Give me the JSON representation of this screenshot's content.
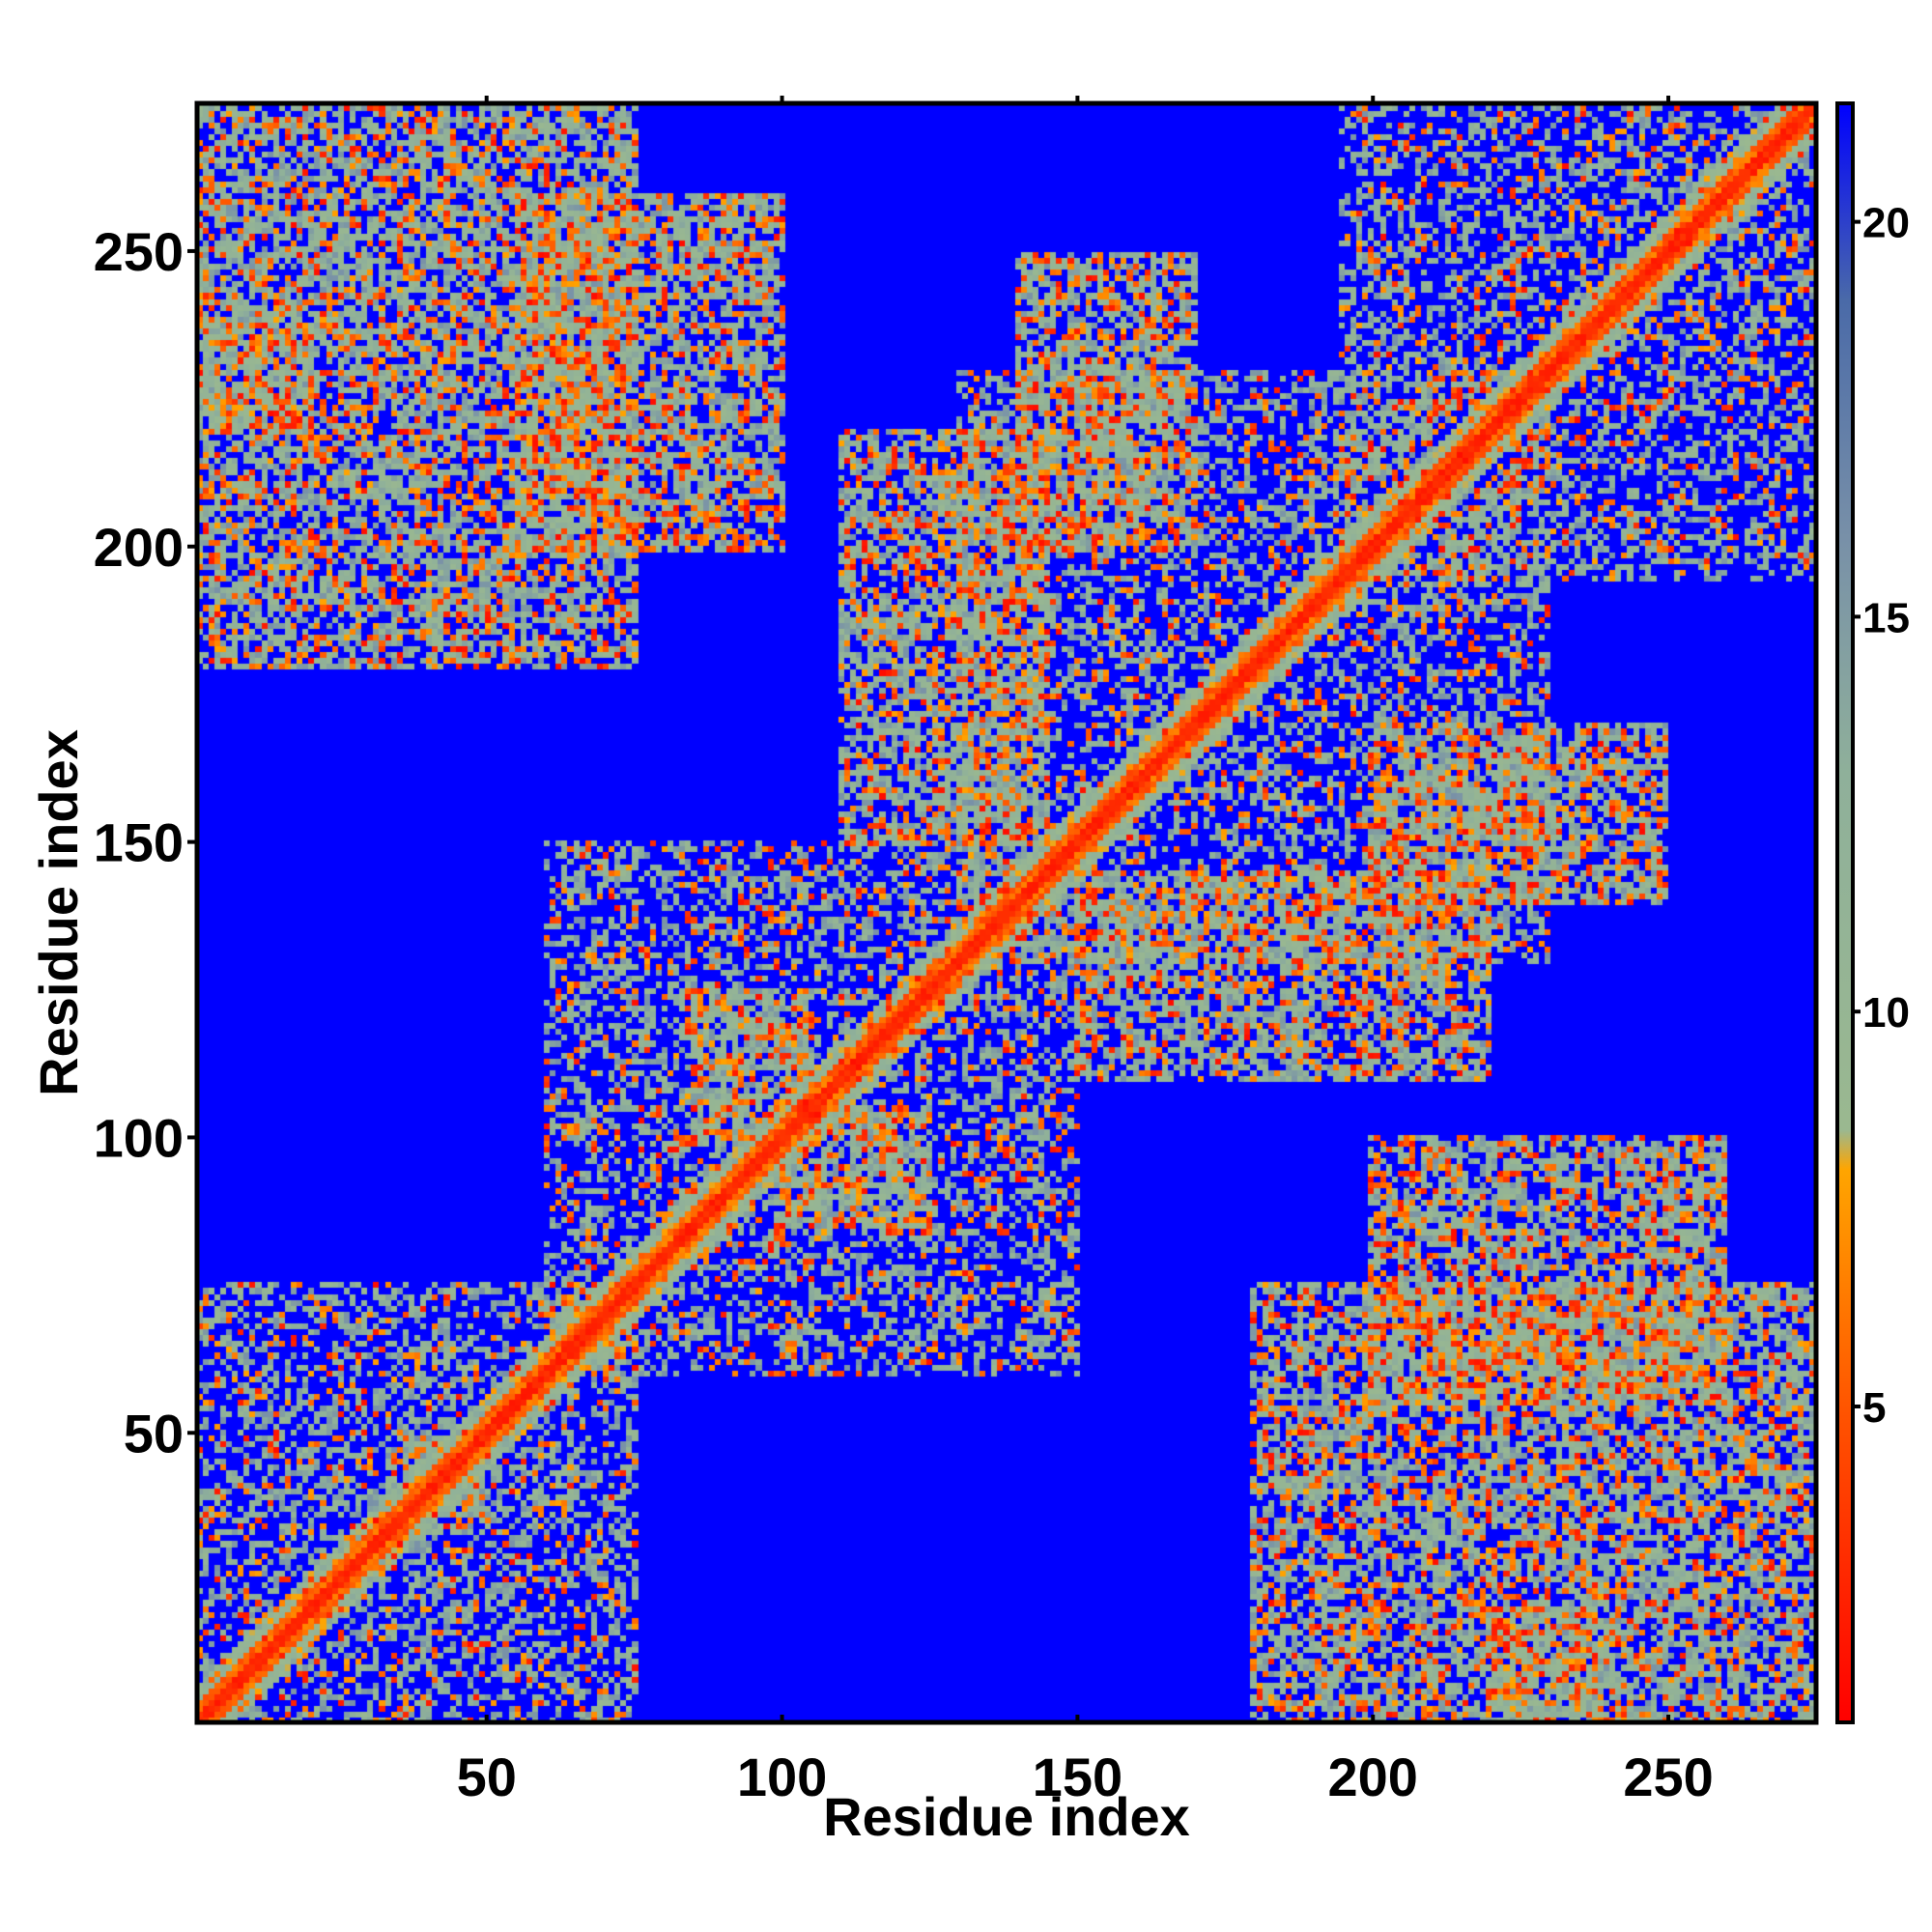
{
  "chart_data": {
    "type": "heatmap",
    "title": "",
    "xlabel": "Residue index",
    "ylabel": "Residue index",
    "n_residues": 275,
    "xlim": [
      1,
      275
    ],
    "ylim": [
      1,
      275
    ],
    "x_ticks": [
      50,
      100,
      150,
      200,
      250
    ],
    "y_ticks": [
      50,
      100,
      150,
      200,
      250
    ],
    "x_tick_labels": [
      "50",
      "100",
      "150",
      "200",
      "250"
    ],
    "y_tick_labels": [
      "50",
      "100",
      "150",
      "200",
      "250"
    ],
    "colorbar": {
      "range": [
        1,
        21.5
      ],
      "ticks": [
        5,
        10,
        15,
        20
      ],
      "tick_labels": [
        "5",
        "10",
        "15",
        "20"
      ],
      "stops": [
        {
          "value": 1,
          "color": "#ff0000"
        },
        {
          "value": 5,
          "color": "#ff5500"
        },
        {
          "value": 8,
          "color": "#ffa500"
        },
        {
          "value": 8.5,
          "color": "#9ab890"
        },
        {
          "value": 13,
          "color": "#8fb09a"
        },
        {
          "value": 16,
          "color": "#7890a8"
        },
        {
          "value": 19,
          "color": "#4a6aa8"
        },
        {
          "value": 21.5,
          "color": "#0000ff"
        }
      ]
    },
    "background_color": "#0000ff",
    "diagonal_color": "#ff0000",
    "contact_regions": [
      {
        "x": [
          1,
          75
        ],
        "y": [
          1,
          75
        ],
        "kind": "diagonal-block"
      },
      {
        "x": [
          60,
          150
        ],
        "y": [
          60,
          150
        ],
        "kind": "diagonal-block"
      },
      {
        "x": [
          130,
          230
        ],
        "y": [
          130,
          230
        ],
        "kind": "diagonal-block"
      },
      {
        "x": [
          195,
          275
        ],
        "y": [
          195,
          275
        ],
        "kind": "diagonal-block"
      },
      {
        "x": [
          1,
          75
        ],
        "y": [
          180,
          275
        ],
        "kind": "off-diagonal"
      },
      {
        "x": [
          180,
          275
        ],
        "y": [
          1,
          75
        ],
        "kind": "off-diagonal"
      },
      {
        "x": [
          55,
          100
        ],
        "y": [
          200,
          260
        ],
        "kind": "off-diagonal"
      },
      {
        "x": [
          200,
          260
        ],
        "y": [
          55,
          100
        ],
        "kind": "off-diagonal"
      },
      {
        "x": [
          110,
          145
        ],
        "y": [
          150,
          220
        ],
        "kind": "off-diagonal"
      },
      {
        "x": [
          150,
          220
        ],
        "y": [
          110,
          145
        ],
        "kind": "off-diagonal"
      },
      {
        "x": [
          100,
          125
        ],
        "y": [
          85,
          105
        ],
        "kind": "off-diagonal"
      },
      {
        "x": [
          85,
          105
        ],
        "y": [
          100,
          125
        ],
        "kind": "off-diagonal"
      },
      {
        "x": [
          200,
          250
        ],
        "y": [
          140,
          170
        ],
        "kind": "off-diagonal"
      },
      {
        "x": [
          140,
          170
        ],
        "y": [
          200,
          250
        ],
        "kind": "off-diagonal"
      },
      {
        "x": [
          1,
          20
        ],
        "y": [
          220,
          240
        ],
        "kind": "off-diagonal"
      },
      {
        "x": [
          220,
          240
        ],
        "y": [
          1,
          20
        ],
        "kind": "off-diagonal"
      }
    ],
    "grid": false,
    "legend": "colorbar-right"
  }
}
